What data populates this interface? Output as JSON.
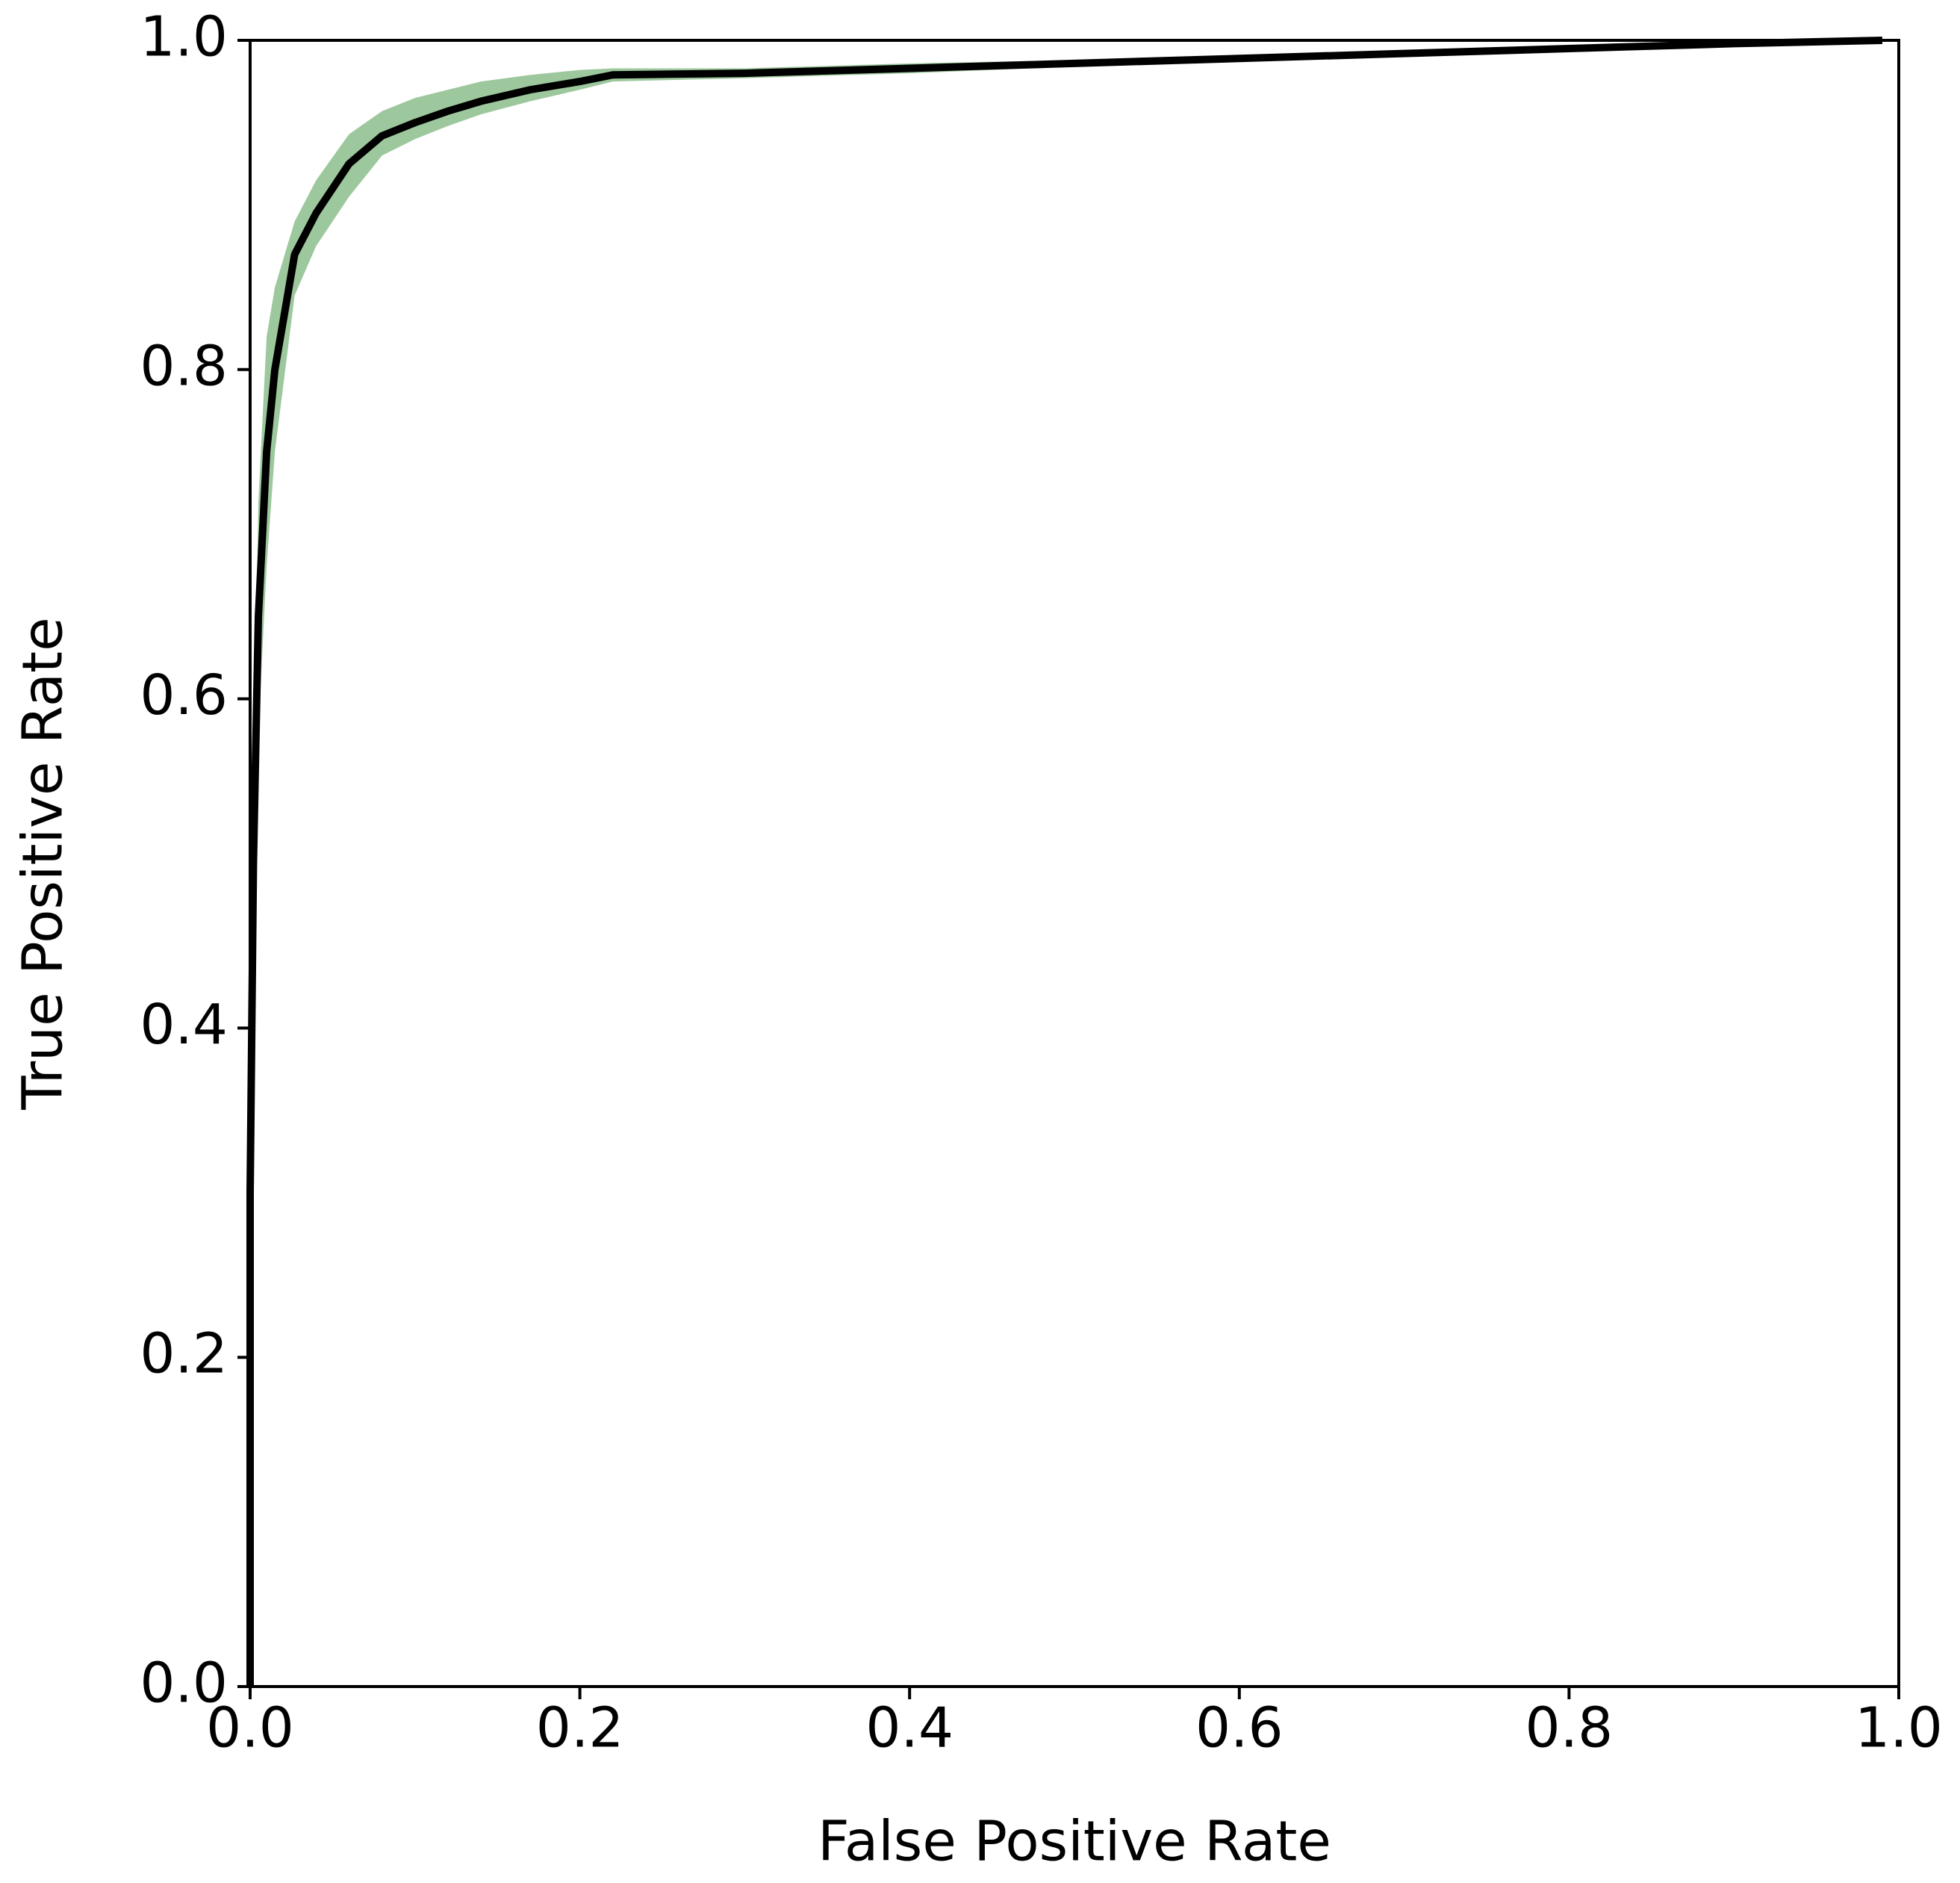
{
  "chart_data": {
    "type": "line",
    "xlabel": "False Positive Rate",
    "ylabel": "True Positive Rate",
    "x": [
      0,
      0,
      0.002,
      0.005,
      0.01,
      0.015,
      0.027,
      0.04,
      0.06,
      0.08,
      0.1,
      0.12,
      0.14,
      0.17,
      0.2,
      0.22,
      0.3,
      0.4,
      0.5,
      0.6,
      0.7,
      0.8,
      0.9,
      0.99
    ],
    "values": [
      0,
      0.3,
      0.5,
      0.65,
      0.75,
      0.8,
      0.87,
      0.895,
      0.925,
      0.942,
      0.95,
      0.957,
      0.963,
      0.97,
      0.975,
      0.979,
      0.98,
      0.983,
      0.986,
      0.989,
      0.992,
      0.995,
      0.998,
      1.0
    ],
    "band_lower": [
      0,
      0.28,
      0.45,
      0.58,
      0.68,
      0.75,
      0.845,
      0.875,
      0.905,
      0.93,
      0.94,
      0.948,
      0.955,
      0.963,
      0.97,
      0.975,
      0.977,
      0.98,
      0.984,
      0.987,
      0.99,
      0.994,
      0.997,
      1.0
    ],
    "band_upper": [
      0,
      0.32,
      0.55,
      0.72,
      0.82,
      0.85,
      0.89,
      0.915,
      0.943,
      0.957,
      0.965,
      0.97,
      0.975,
      0.979,
      0.982,
      0.983,
      0.983,
      0.986,
      0.988,
      0.991,
      0.994,
      0.996,
      0.999,
      1.0
    ],
    "color": "#000000",
    "band_color": "#9dc89d",
    "xlim": [
      0,
      1
    ],
    "ylim": [
      0,
      1
    ],
    "xticks": [
      {
        "value": 0,
        "label": "0.0"
      },
      0.2,
      0.4,
      0.6,
      0.8,
      {
        "value": 1,
        "label": "1.0"
      }
    ],
    "yticks": [
      {
        "value": 0,
        "label": "0.0"
      },
      0.2,
      0.4,
      0.6,
      0.8,
      {
        "value": 1,
        "label": "1.0"
      }
    ],
    "grid": false
  }
}
